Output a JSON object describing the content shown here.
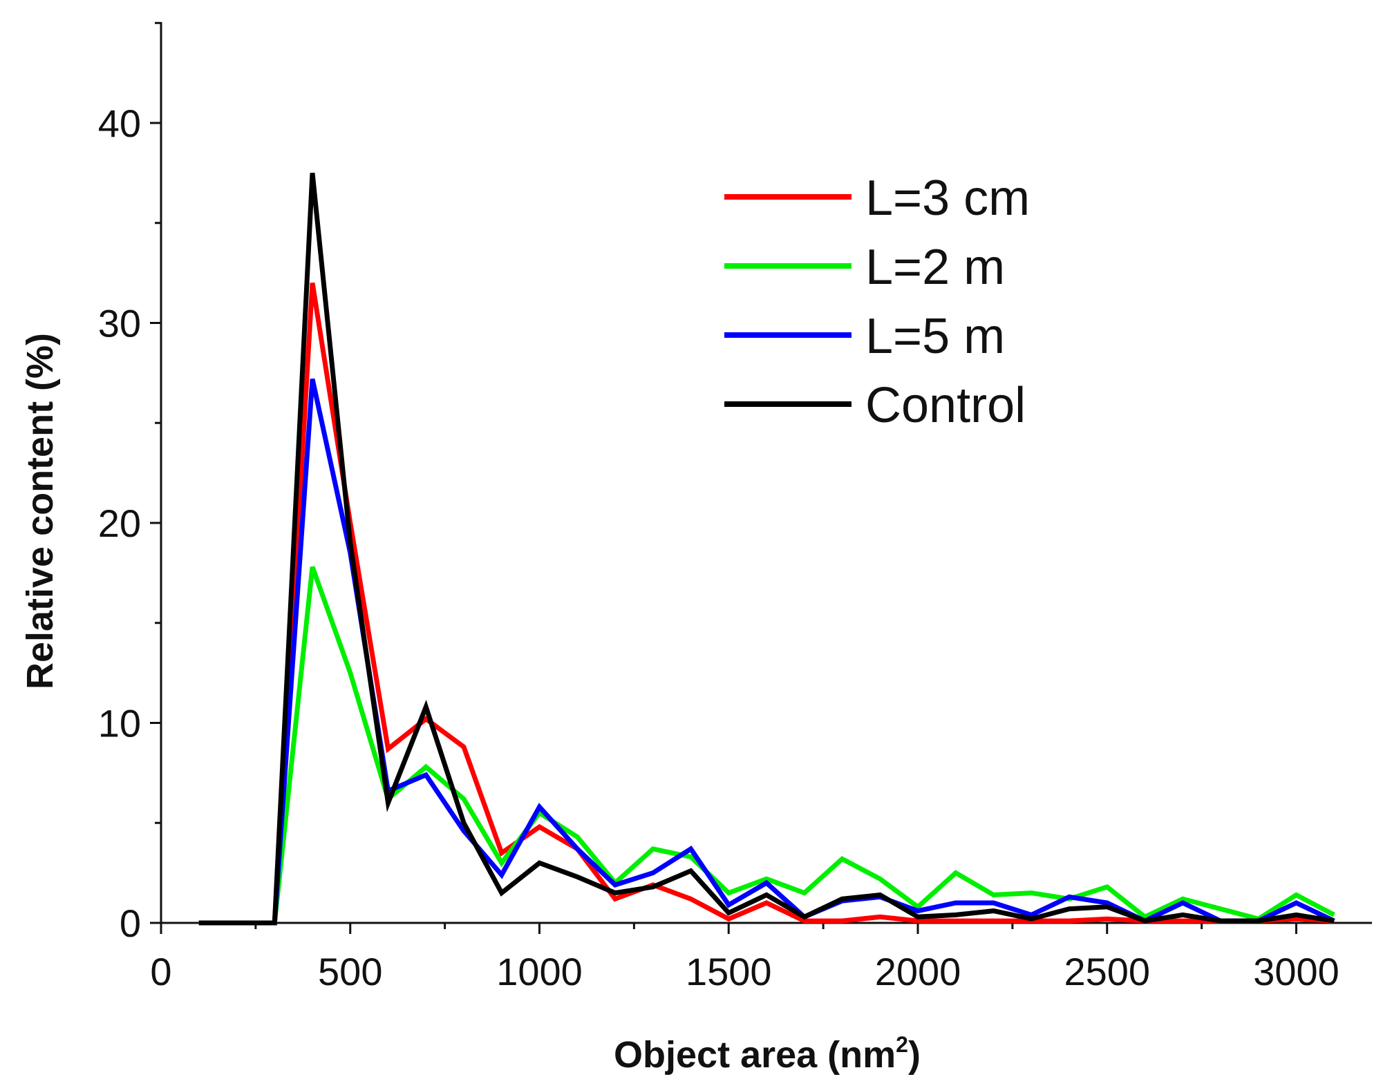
{
  "chart_data": {
    "type": "line",
    "title": "",
    "xlabel": "Object area (nm",
    "xlabel_superscript": "2",
    "xlabel_suffix": ")",
    "ylabel": "Relative content (%)",
    "xlim": [
      0,
      3200
    ],
    "ylim": [
      0,
      45
    ],
    "x_ticks": [
      0,
      500,
      1000,
      1500,
      2000,
      2500,
      3000
    ],
    "x_tick_labels": [
      "0",
      "500",
      "1000",
      "1500",
      "2000",
      "2500",
      "3000"
    ],
    "y_ticks": [
      0,
      10,
      20,
      30,
      40
    ],
    "y_tick_labels": [
      "0",
      "10",
      "20",
      "30",
      "40"
    ],
    "grid": false,
    "legend_position": "top-right",
    "x": [
      100,
      200,
      300,
      400,
      500,
      600,
      700,
      800,
      900,
      1000,
      1100,
      1200,
      1300,
      1400,
      1500,
      1600,
      1700,
      1800,
      1900,
      2000,
      2100,
      2200,
      2300,
      2400,
      2500,
      2600,
      2700,
      2800,
      2900,
      3000,
      3100
    ],
    "series": [
      {
        "name": "L=3 cm",
        "color": "#ff0000",
        "values": [
          0,
          0,
          0,
          32,
          20,
          8.7,
          10.2,
          8.8,
          3.5,
          4.8,
          3.7,
          1.2,
          1.9,
          1.2,
          0.2,
          1.0,
          0.1,
          0.1,
          0.3,
          0.1,
          0.1,
          0.1,
          0.1,
          0.1,
          0.2,
          0.1,
          0.1,
          0.1,
          0.1,
          0.2,
          0.1
        ]
      },
      {
        "name": "L=2 m",
        "color": "#00ee00",
        "values": [
          0,
          0,
          0,
          17.8,
          12.5,
          6.2,
          7.8,
          6.2,
          3.0,
          5.5,
          4.3,
          2.0,
          3.7,
          3.3,
          1.5,
          2.2,
          1.5,
          3.2,
          2.2,
          0.8,
          2.5,
          1.4,
          1.5,
          1.2,
          1.8,
          0.3,
          1.2,
          0.7,
          0.2,
          1.4,
          0.4
        ]
      },
      {
        "name": "L=5 m",
        "color": "#0000ff",
        "values": [
          0,
          0,
          0,
          27.2,
          18.5,
          6.6,
          7.4,
          4.6,
          2.4,
          5.8,
          3.7,
          1.9,
          2.5,
          3.7,
          0.9,
          2.0,
          0.3,
          1.1,
          1.3,
          0.6,
          1.0,
          1.0,
          0.4,
          1.3,
          1.0,
          0.1,
          1.0,
          0.1,
          0.1,
          1.0,
          0.1
        ]
      },
      {
        "name": "Control",
        "color": "#000000",
        "values": [
          0,
          0,
          0,
          37.5,
          19,
          6.0,
          10.8,
          5.0,
          1.5,
          3.0,
          2.3,
          1.5,
          1.8,
          2.6,
          0.5,
          1.4,
          0.3,
          1.2,
          1.4,
          0.3,
          0.4,
          0.6,
          0.2,
          0.7,
          0.8,
          0.1,
          0.4,
          0.1,
          0.1,
          0.4,
          0.1
        ]
      }
    ]
  }
}
